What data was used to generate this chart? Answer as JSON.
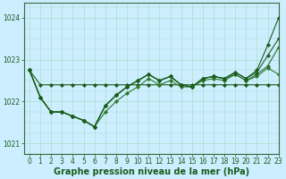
{
  "title": "Graphe pression niveau de la mer (hPa)",
  "bg_color": "#cceeff",
  "grid_color": "#aaddcc",
  "line_color_dark": "#1a5c1a",
  "line_color_mid": "#2d7a2d",
  "xlim": [
    -0.5,
    23
  ],
  "ylim": [
    1020.75,
    1024.35
  ],
  "yticks": [
    1021,
    1022,
    1023,
    1024
  ],
  "xticks": [
    0,
    1,
    2,
    3,
    4,
    5,
    6,
    7,
    8,
    9,
    10,
    11,
    12,
    13,
    14,
    15,
    16,
    17,
    18,
    19,
    20,
    21,
    22,
    23
  ],
  "series": [
    [
      1022.75,
      1022.4,
      1022.4,
      1022.4,
      1022.4,
      1022.4,
      1022.4,
      1022.4,
      1022.4,
      1022.4,
      1022.4,
      1022.4,
      1022.4,
      1022.4,
      1022.4,
      1022.4,
      1022.4,
      1022.4,
      1022.4,
      1022.4,
      1022.4,
      1022.4,
      1022.4,
      1022.4
    ],
    [
      1022.75,
      1022.1,
      1021.75,
      1021.75,
      1021.65,
      1021.55,
      1021.4,
      1021.75,
      1022.0,
      1022.2,
      1022.35,
      1022.55,
      1022.4,
      1022.5,
      1022.35,
      1022.35,
      1022.5,
      1022.55,
      1022.5,
      1022.65,
      1022.5,
      1022.6,
      1022.8,
      1022.65
    ],
    [
      1022.75,
      1022.1,
      1021.75,
      1021.75,
      1021.65,
      1021.55,
      1021.4,
      1021.9,
      1022.15,
      1022.35,
      1022.5,
      1022.65,
      1022.5,
      1022.6,
      1022.4,
      1022.35,
      1022.55,
      1022.6,
      1022.55,
      1022.65,
      1022.5,
      1022.65,
      1022.85,
      1023.3
    ],
    [
      1022.75,
      1022.1,
      1021.75,
      1021.75,
      1021.65,
      1021.55,
      1021.4,
      1021.9,
      1022.15,
      1022.35,
      1022.5,
      1022.65,
      1022.5,
      1022.6,
      1022.4,
      1022.35,
      1022.55,
      1022.6,
      1022.55,
      1022.7,
      1022.55,
      1022.7,
      1023.1,
      1023.5
    ],
    [
      1022.75,
      1022.1,
      1021.75,
      1021.75,
      1021.65,
      1021.55,
      1021.4,
      1021.9,
      1022.15,
      1022.35,
      1022.5,
      1022.65,
      1022.5,
      1022.6,
      1022.4,
      1022.35,
      1022.55,
      1022.6,
      1022.55,
      1022.7,
      1022.55,
      1022.75,
      1023.35,
      1024.0
    ]
  ],
  "marker": "D",
  "marker_size": 2.2,
  "linewidth": 0.8,
  "tick_fontsize": 5.5,
  "title_fontsize": 7.0
}
